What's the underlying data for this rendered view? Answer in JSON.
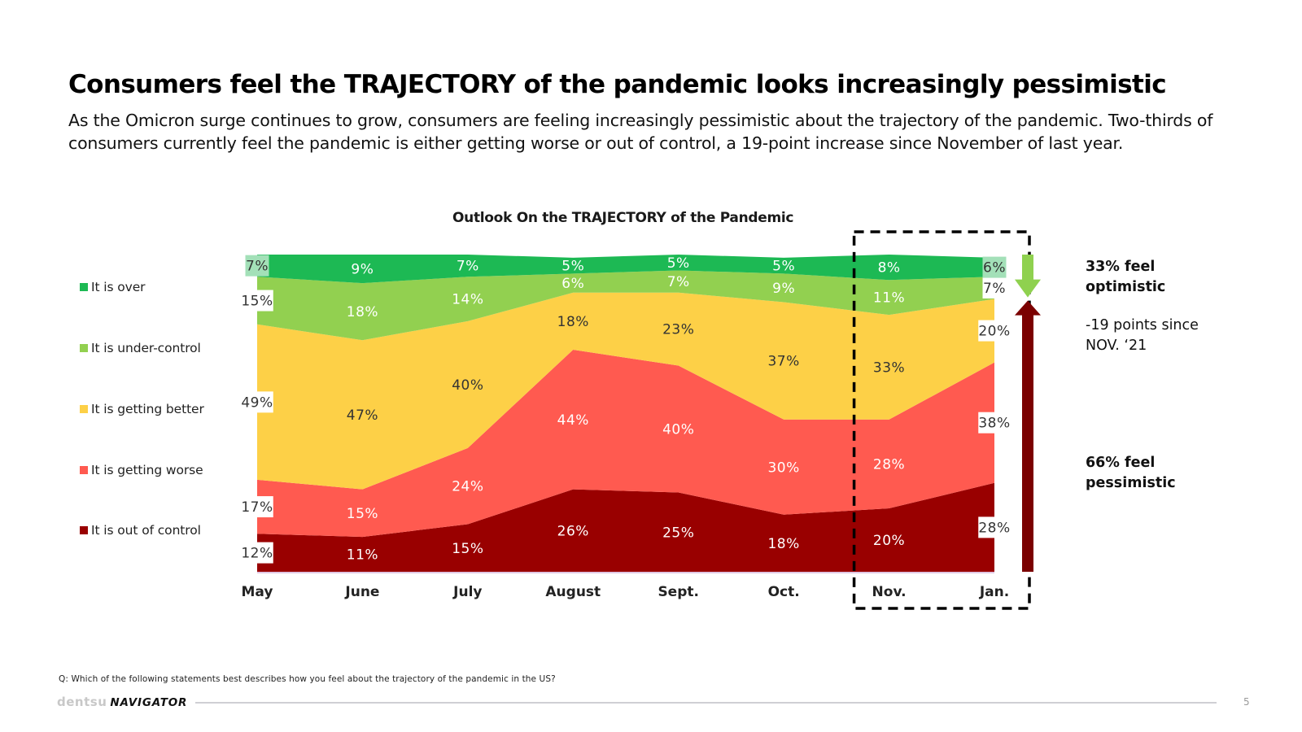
{
  "title": "Consumers feel the TRAJECTORY of the pandemic looks increasingly pessimistic",
  "subtitle": "As the Omicron surge continues to grow, consumers are feeling increasingly pessimistic about the trajectory of the pandemic. Two-thirds of consumers currently feel the pandemic is either getting worse or out of control, a 19-point increase since November of last year.",
  "colors": {
    "over": "#1db954",
    "under_control": "#92d050",
    "getting_better": "#fdd047",
    "getting_worse": "#ff5a50",
    "out_of_control": "#990000",
    "optimistic_arrow": "#8fd14f",
    "pessimistic_arrow": "#7b0000"
  },
  "chart_data": {
    "type": "area",
    "stacked": true,
    "title": "Outlook On the TRAJECTORY of the Pandemic",
    "categories": [
      "May",
      "June",
      "July",
      "August",
      "Sept.",
      "Oct.",
      "Nov.",
      "Jan."
    ],
    "series": [
      {
        "name": "It is out of control",
        "values": [
          12,
          11,
          15,
          26,
          25,
          18,
          20,
          28
        ],
        "labels": [
          "12%",
          "11%",
          "15%",
          "26%",
          "25%",
          "18%",
          "20%",
          "28%"
        ]
      },
      {
        "name": "It is getting worse",
        "values": [
          17,
          15,
          24,
          44,
          40,
          30,
          28,
          38
        ],
        "labels": [
          "17%",
          "15%",
          "24%",
          "44%",
          "40%",
          "30%",
          "28%",
          "38%"
        ]
      },
      {
        "name": "It is getting better",
        "values": [
          49,
          47,
          40,
          18,
          23,
          37,
          33,
          20
        ],
        "labels": [
          "49%",
          "47%",
          "40%",
          "18%",
          "23%",
          "37%",
          "33%",
          "20%"
        ]
      },
      {
        "name": "It is under-control",
        "values": [
          15,
          18,
          14,
          6,
          7,
          9,
          11,
          7
        ],
        "labels": [
          "15%",
          "18%",
          "14%",
          "6%",
          "7%",
          "9%",
          "11%",
          "7%"
        ]
      },
      {
        "name": "It is over",
        "values": [
          7,
          9,
          7,
          5,
          5,
          5,
          8,
          6
        ],
        "labels": [
          "7%",
          "9%",
          "7%",
          "5%",
          "5%",
          "5%",
          "8%",
          "6%"
        ]
      }
    ],
    "ylim": [
      0,
      100
    ],
    "legend_position": "left",
    "highlighted_categories": [
      "Nov.",
      "Jan."
    ]
  },
  "legend": {
    "items": [
      {
        "label": "It is over",
        "color_key": "over"
      },
      {
        "label": "It is under-control",
        "color_key": "under_control"
      },
      {
        "label": "It is getting better",
        "color_key": "getting_better"
      },
      {
        "label": "It is getting worse",
        "color_key": "getting_worse"
      },
      {
        "label": "It is out of control",
        "color_key": "out_of_control"
      }
    ]
  },
  "annotations": {
    "optimistic": "33% feel optimistic",
    "change": "-19 points since NOV. ‘21",
    "pessimistic": "66% feel pessimistic"
  },
  "footer": {
    "question": "Q: Which of the following statements best describes how you feel about the trajectory of the pandemic in the US?",
    "brand_name": "dentsu",
    "product_name": "NAVIGATOR",
    "page_number": "5"
  }
}
